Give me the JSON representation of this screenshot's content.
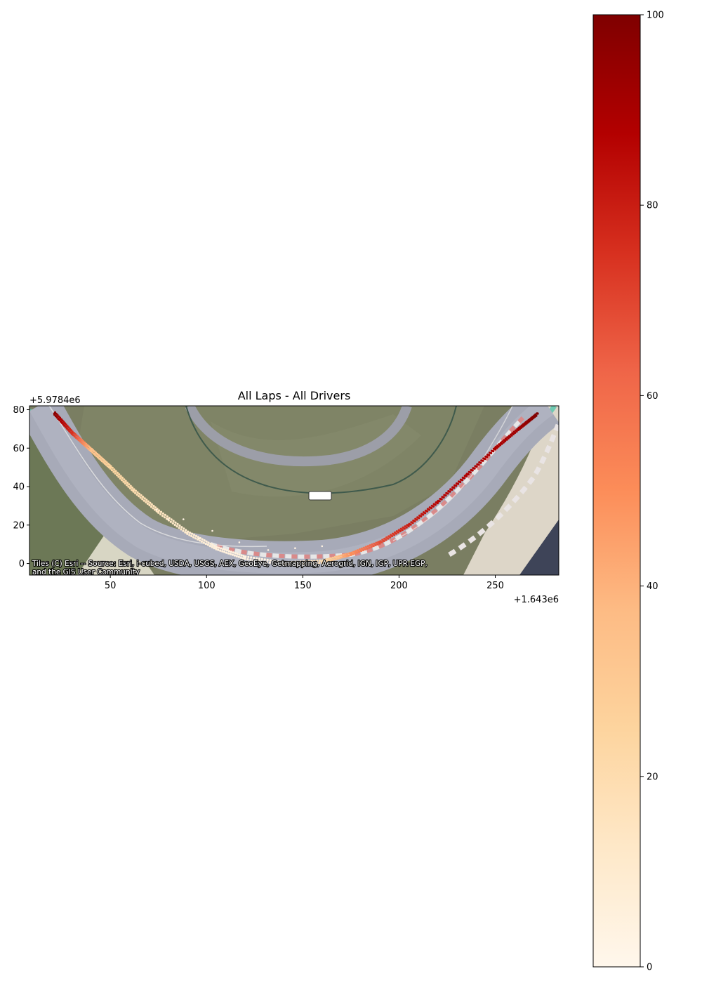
{
  "chart_data": {
    "type": "scatter",
    "title": "All Laps - All Drivers",
    "xlabel": "",
    "ylabel": "",
    "x_offset_label": "+1.643e6",
    "y_offset_label": "+5.9784e6",
    "xlim": [
      8,
      283
    ],
    "ylim": [
      -6,
      82
    ],
    "x_ticks": [
      50,
      100,
      150,
      200,
      250
    ],
    "y_ticks": [
      0,
      20,
      40,
      60,
      80
    ],
    "basemap_attribution": [
      "Tiles (C) Esri -- Source: Esri, i-cubed, USDA, USGS, AEX, GeoEye, Getmapping, Aerogrid, IGN, IGP, UPR-EGP,",
      "and the GIS User Community"
    ],
    "colorbar": {
      "colormap": "OrRd",
      "range": [
        0,
        100
      ],
      "ticks": [
        0,
        20,
        40,
        60,
        80,
        100
      ]
    },
    "racing_line": {
      "description_points": [
        {
          "x": 21,
          "y": 78,
          "value": 97
        },
        {
          "x": 30,
          "y": 68,
          "value": 75
        },
        {
          "x": 40,
          "y": 59,
          "value": 35
        },
        {
          "x": 50,
          "y": 50,
          "value": 25
        },
        {
          "x": 62,
          "y": 38,
          "value": 20
        },
        {
          "x": 75,
          "y": 27,
          "value": 15
        },
        {
          "x": 90,
          "y": 16,
          "value": 10
        },
        {
          "x": 105,
          "y": 8,
          "value": 6
        },
        {
          "x": 120,
          "y": 3,
          "value": 4
        },
        {
          "x": 140,
          "y": 0,
          "value": 4
        },
        {
          "x": 160,
          "y": 1,
          "value": 20
        },
        {
          "x": 175,
          "y": 5,
          "value": 50
        },
        {
          "x": 190,
          "y": 11,
          "value": 68
        },
        {
          "x": 205,
          "y": 20,
          "value": 80
        },
        {
          "x": 220,
          "y": 32,
          "value": 86
        },
        {
          "x": 235,
          "y": 46,
          "value": 88
        },
        {
          "x": 250,
          "y": 60,
          "value": 90
        },
        {
          "x": 262,
          "y": 70,
          "value": 92
        },
        {
          "x": 272,
          "y": 78,
          "value": 100
        }
      ]
    },
    "inner_points": [
      {
        "x": 74,
        "y": 28,
        "value": 3
      },
      {
        "x": 80,
        "y": 23,
        "value": 3
      },
      {
        "x": 88,
        "y": 23,
        "value": 3
      },
      {
        "x": 96,
        "y": 13,
        "value": 3
      },
      {
        "x": 103,
        "y": 17,
        "value": 3
      },
      {
        "x": 117,
        "y": 11,
        "value": 3
      },
      {
        "x": 132,
        "y": 7,
        "value": 3
      },
      {
        "x": 146,
        "y": 8,
        "value": 3
      },
      {
        "x": 160,
        "y": 9,
        "value": 3
      }
    ]
  }
}
